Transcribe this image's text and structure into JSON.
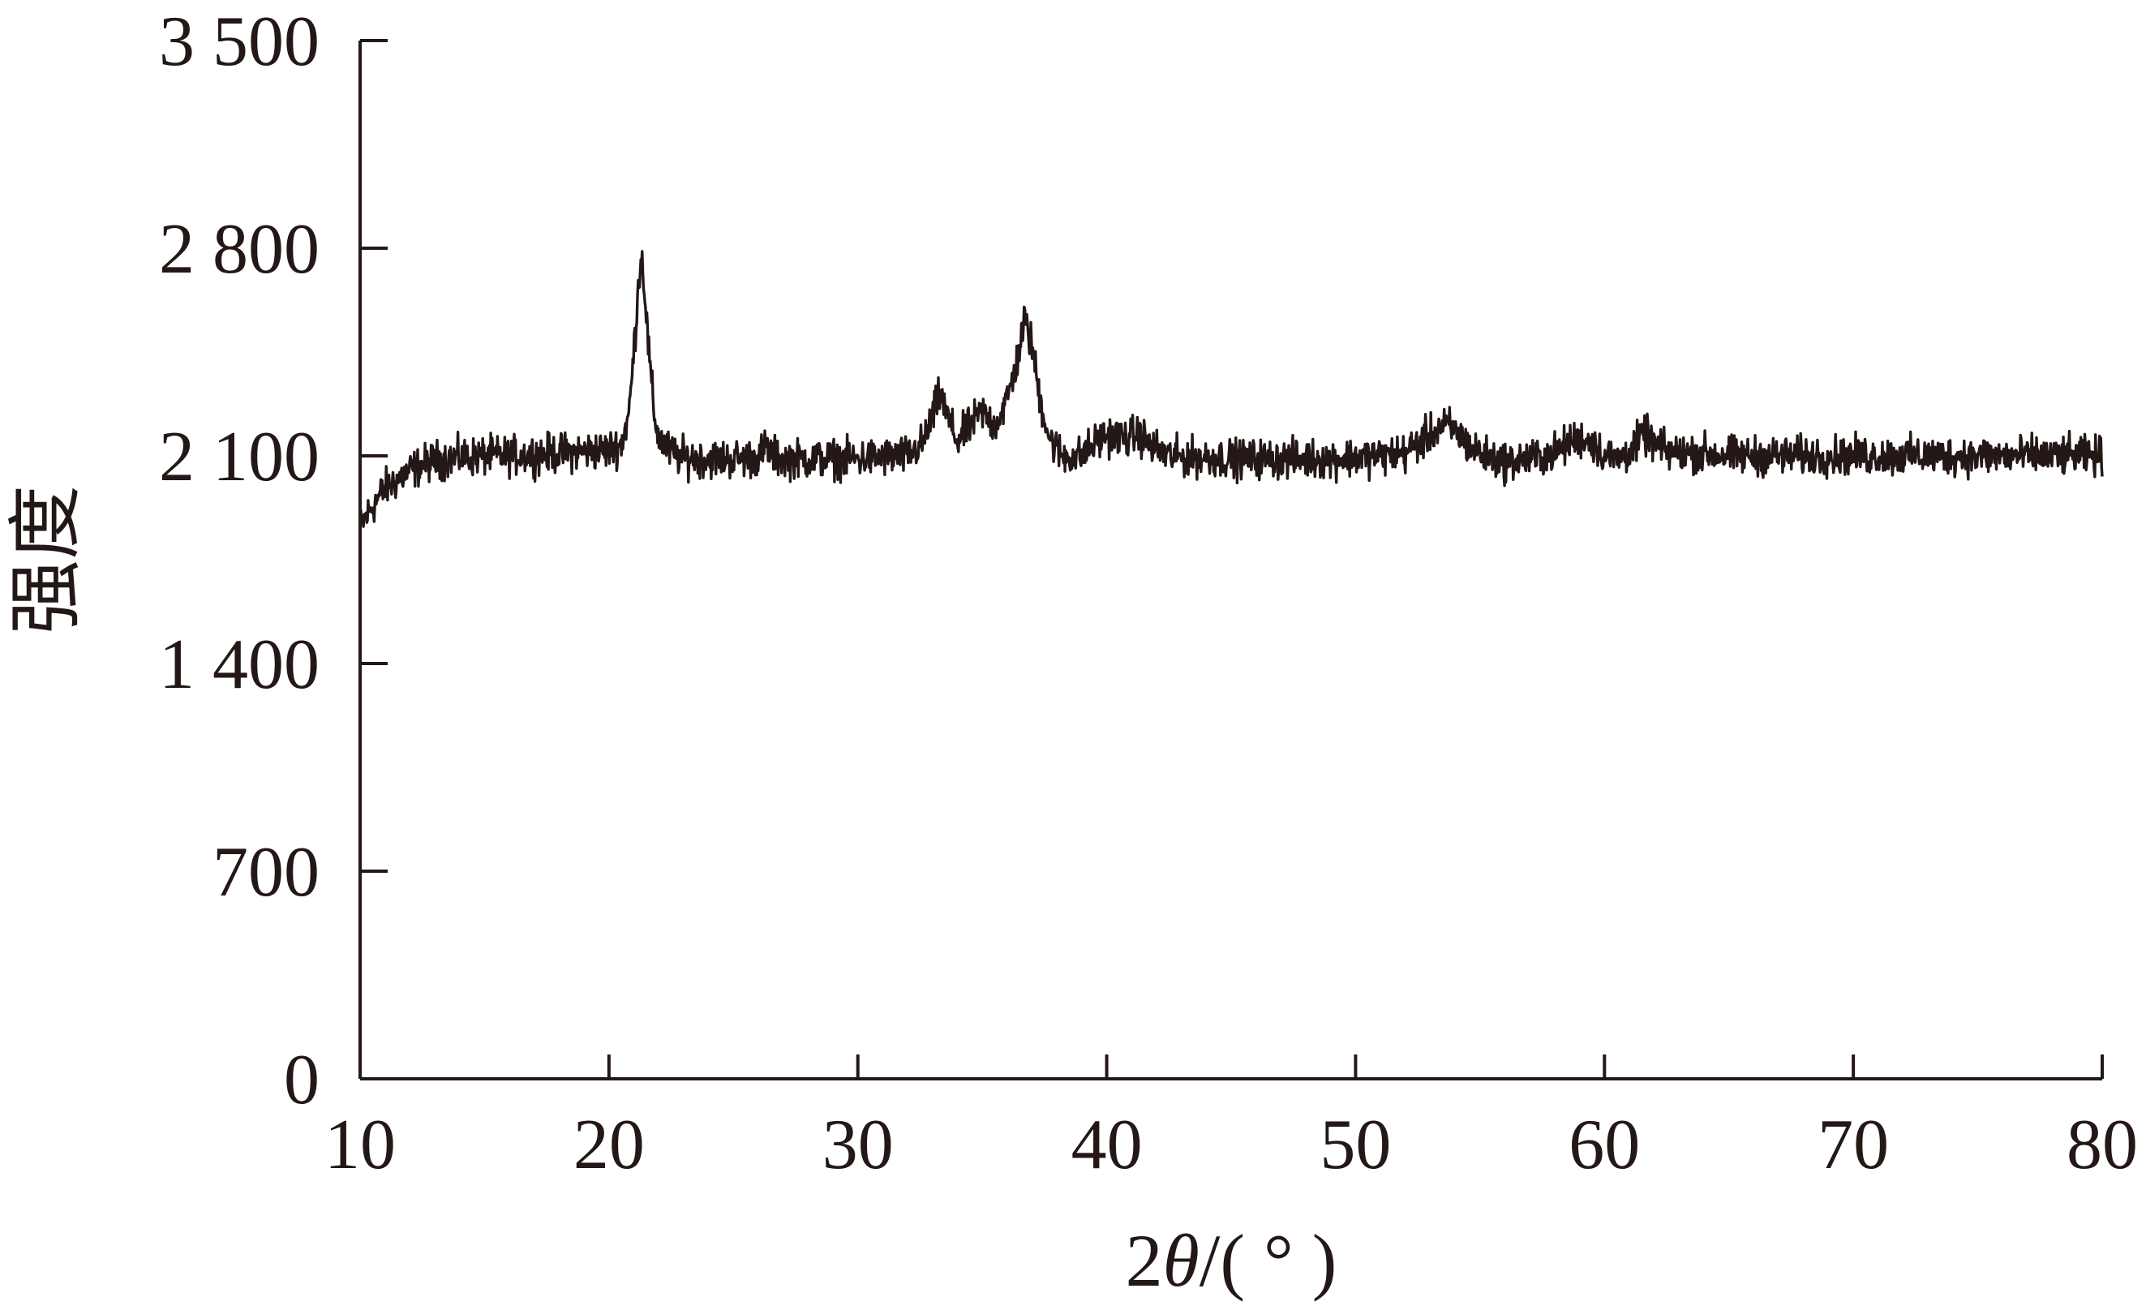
{
  "chart_data": {
    "type": "line",
    "xlabel_prefix": "2",
    "xlabel_symbol": "θ",
    "xlabel_suffix": "/( ° )",
    "ylabel": "强度",
    "xlim": [
      10,
      80
    ],
    "ylim": [
      0,
      3500
    ],
    "xticks": [
      10,
      20,
      30,
      40,
      50,
      60,
      70,
      80
    ],
    "xtick_labels": [
      "10",
      "20",
      "30",
      "40",
      "50",
      "60",
      "70",
      "80"
    ],
    "yticks": [
      0,
      700,
      1400,
      2100,
      2800,
      3500
    ],
    "ytick_labels": [
      "0",
      "700",
      "1 400",
      "2 100",
      "2 800",
      "3 500"
    ],
    "grid": false,
    "line_color": "#231816",
    "series": [
      {
        "points": [
          [
            10.0,
            1860
          ],
          [
            10.5,
            1930
          ],
          [
            11.0,
            1990
          ],
          [
            11.5,
            2020
          ],
          [
            12.0,
            2050
          ],
          [
            12.5,
            2070
          ],
          [
            13.0,
            2085
          ],
          [
            14.0,
            2095
          ],
          [
            15.0,
            2100
          ],
          [
            16.0,
            2100
          ],
          [
            17.0,
            2105
          ],
          [
            18.0,
            2110
          ],
          [
            19.0,
            2115
          ],
          [
            20.0,
            2120
          ],
          [
            20.5,
            2140
          ],
          [
            20.8,
            2240
          ],
          [
            21.0,
            2450
          ],
          [
            21.2,
            2700
          ],
          [
            21.3,
            2780
          ],
          [
            21.4,
            2700
          ],
          [
            21.6,
            2450
          ],
          [
            21.8,
            2250
          ],
          [
            22.0,
            2160
          ],
          [
            22.5,
            2110
          ],
          [
            23.0,
            2095
          ],
          [
            24.0,
            2090
          ],
          [
            25.0,
            2090
          ],
          [
            26.0,
            2095
          ],
          [
            26.3,
            2130
          ],
          [
            26.6,
            2100
          ],
          [
            27.0,
            2090
          ],
          [
            28.0,
            2090
          ],
          [
            29.0,
            2090
          ],
          [
            30.0,
            2090
          ],
          [
            31.0,
            2095
          ],
          [
            32.0,
            2100
          ],
          [
            32.6,
            2140
          ],
          [
            33.0,
            2230
          ],
          [
            33.3,
            2310
          ],
          [
            33.6,
            2230
          ],
          [
            34.0,
            2150
          ],
          [
            34.5,
            2200
          ],
          [
            35.0,
            2250
          ],
          [
            35.5,
            2200
          ],
          [
            36.0,
            2290
          ],
          [
            36.4,
            2420
          ],
          [
            36.7,
            2560
          ],
          [
            37.0,
            2470
          ],
          [
            37.3,
            2300
          ],
          [
            37.7,
            2160
          ],
          [
            38.2,
            2100
          ],
          [
            39.0,
            2100
          ],
          [
            39.6,
            2150
          ],
          [
            40.0,
            2170
          ],
          [
            40.8,
            2160
          ],
          [
            41.3,
            2175
          ],
          [
            41.8,
            2130
          ],
          [
            42.5,
            2100
          ],
          [
            43.0,
            2095
          ],
          [
            44.0,
            2095
          ],
          [
            45.0,
            2090
          ],
          [
            46.0,
            2090
          ],
          [
            47.0,
            2090
          ],
          [
            48.0,
            2090
          ],
          [
            49.0,
            2090
          ],
          [
            50.0,
            2095
          ],
          [
            51.0,
            2100
          ],
          [
            52.0,
            2110
          ],
          [
            52.8,
            2160
          ],
          [
            53.3,
            2190
          ],
          [
            53.7,
            2200
          ],
          [
            54.1,
            2180
          ],
          [
            54.6,
            2130
          ],
          [
            55.2,
            2100
          ],
          [
            56.0,
            2080
          ],
          [
            57.0,
            2090
          ],
          [
            58.0,
            2110
          ],
          [
            58.7,
            2150
          ],
          [
            59.1,
            2160
          ],
          [
            59.6,
            2140
          ],
          [
            60.0,
            2100
          ],
          [
            60.6,
            2090
          ],
          [
            61.2,
            2130
          ],
          [
            61.6,
            2175
          ],
          [
            62.0,
            2140
          ],
          [
            62.5,
            2115
          ],
          [
            63.0,
            2110
          ],
          [
            64.0,
            2110
          ],
          [
            65.0,
            2100
          ],
          [
            66.0,
            2100
          ],
          [
            67.0,
            2100
          ],
          [
            68.0,
            2100
          ],
          [
            69.0,
            2100
          ],
          [
            70.0,
            2100
          ],
          [
            71.0,
            2100
          ],
          [
            72.0,
            2100
          ],
          [
            73.0,
            2100
          ],
          [
            74.0,
            2100
          ],
          [
            75.0,
            2100
          ],
          [
            76.0,
            2100
          ],
          [
            77.0,
            2100
          ],
          [
            78.0,
            2100
          ],
          [
            79.0,
            2100
          ],
          [
            80.0,
            2100
          ]
        ],
        "noise_amplitude": 40
      }
    ]
  }
}
